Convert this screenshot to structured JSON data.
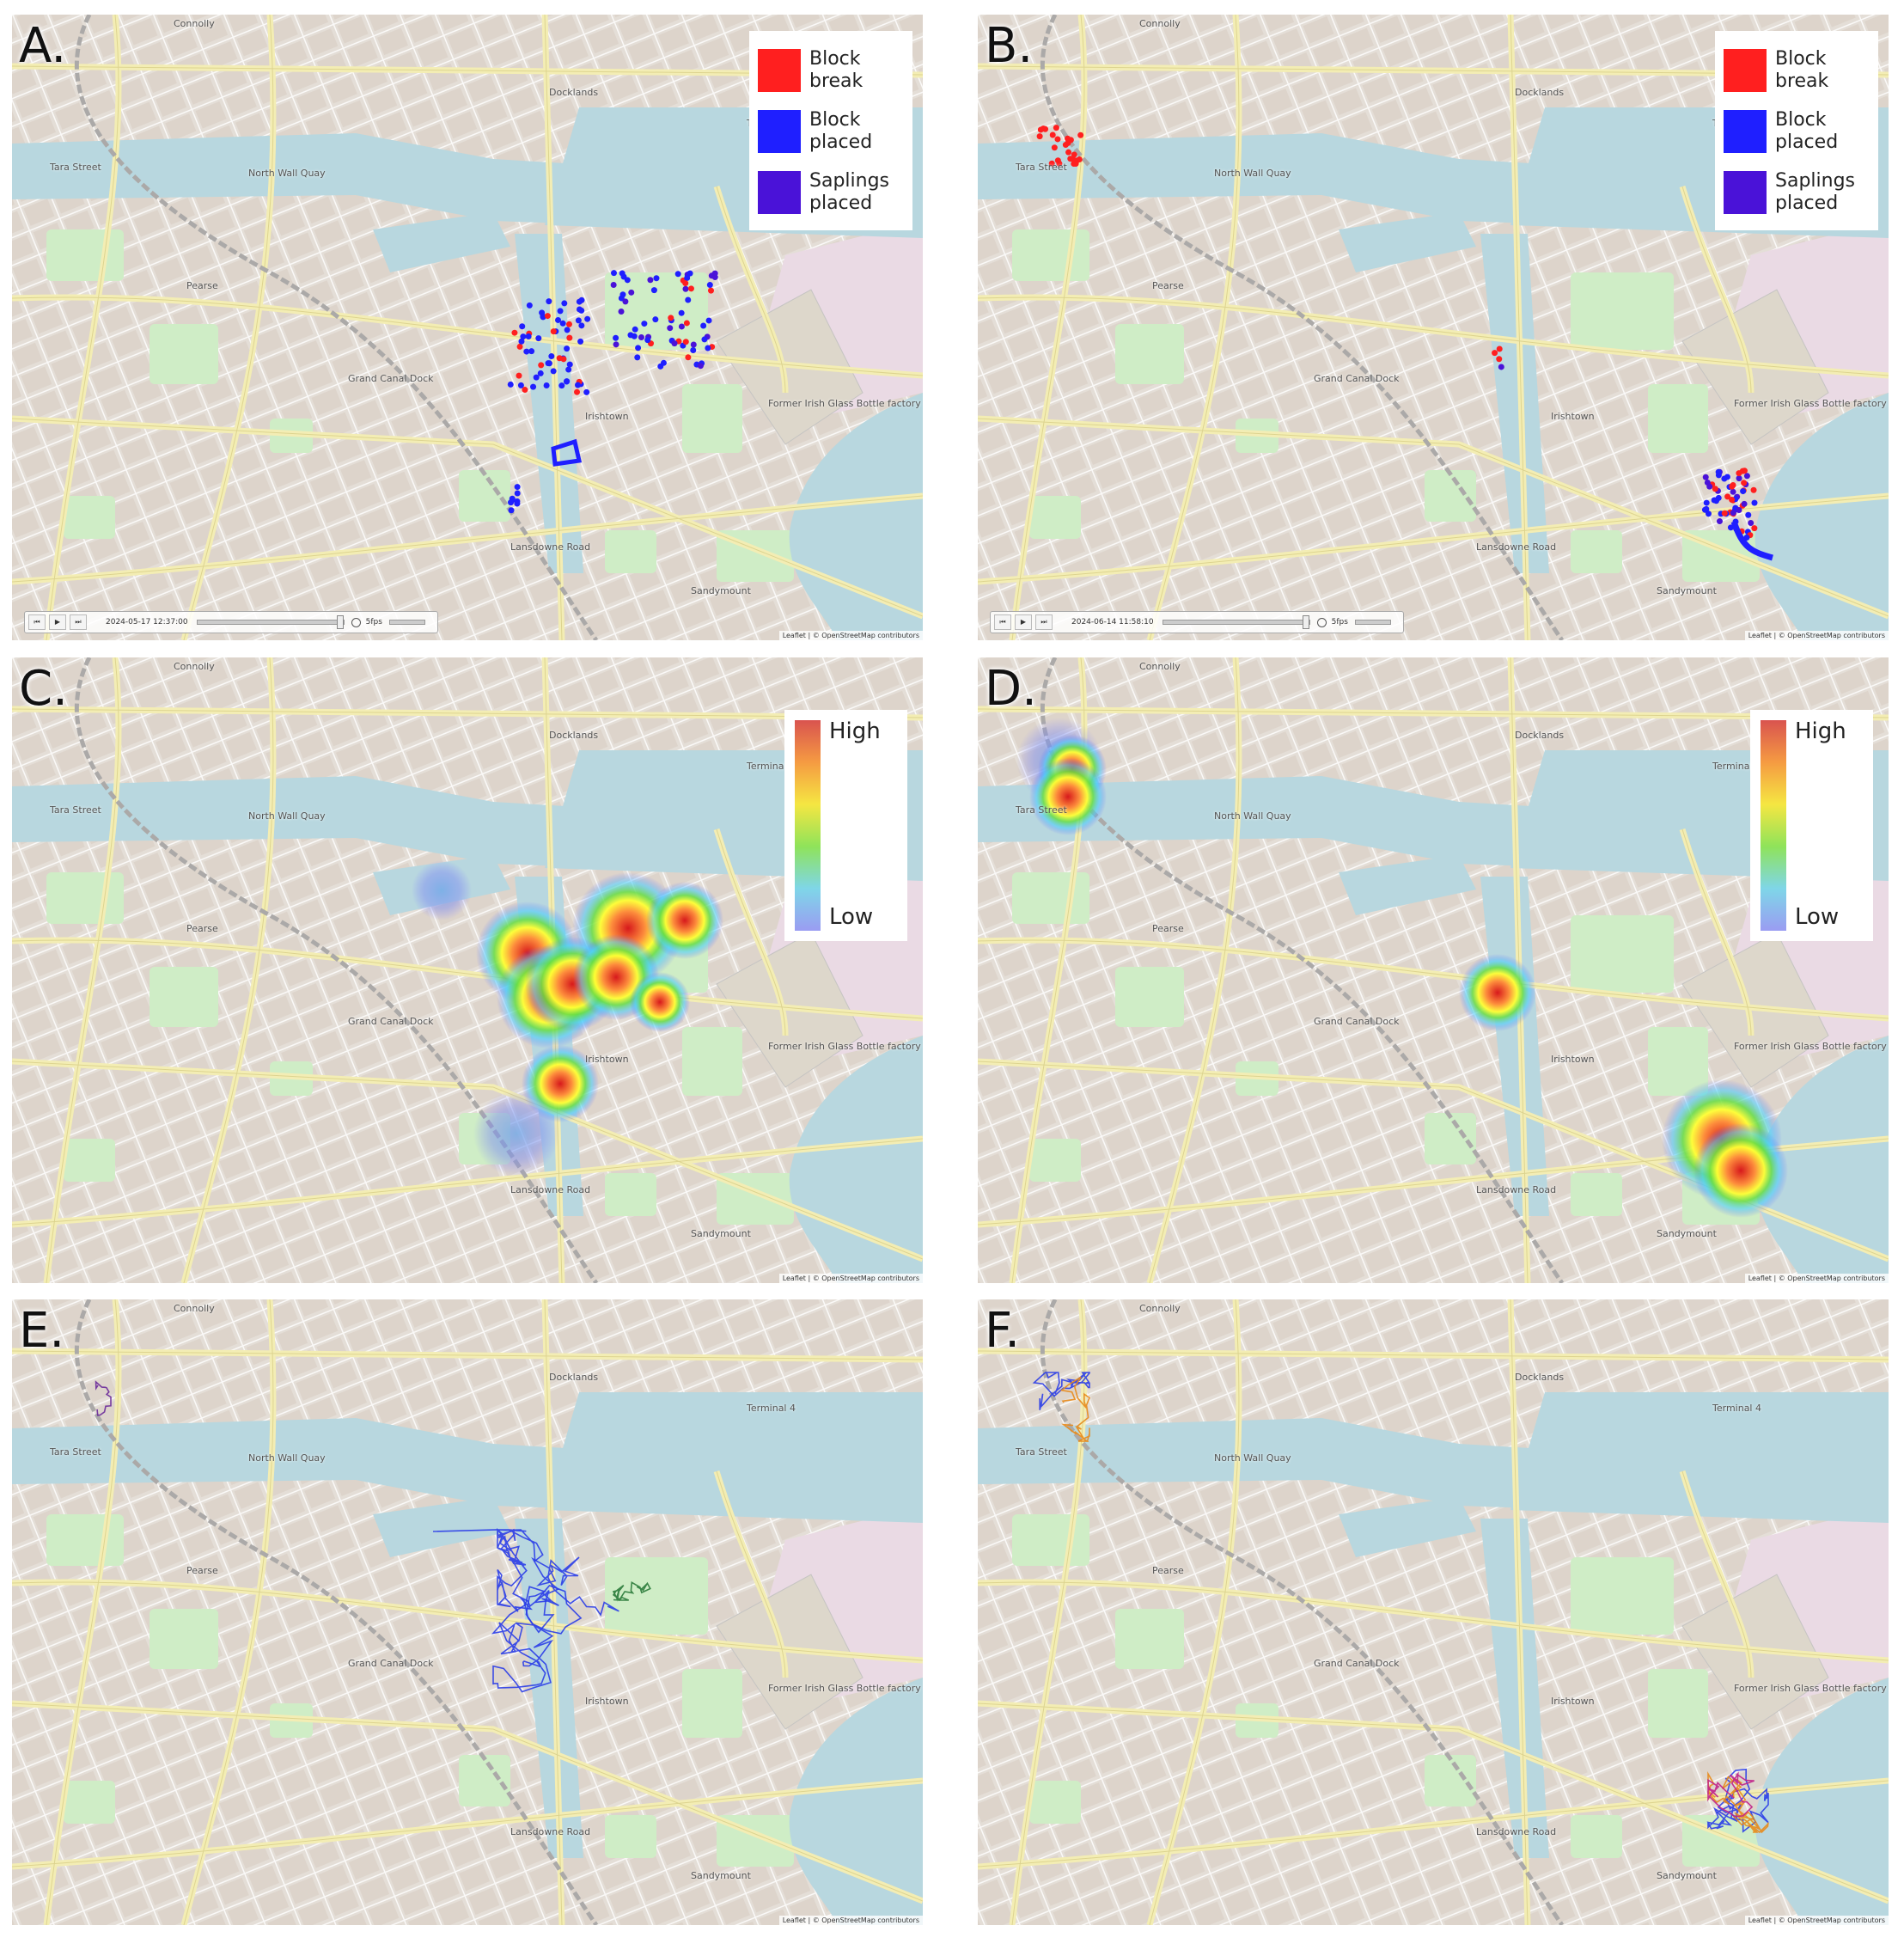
{
  "panels": [
    {
      "label": "A.",
      "legend": [
        {
          "name": "Block break",
          "color": "#ff1f1f"
        },
        {
          "name": "Block placed",
          "color": "#1f1fff"
        },
        {
          "name": "Saplings placed",
          "color": "#4a12d8"
        }
      ],
      "timeline": {
        "timestamp": "2024-05-17 12:37:00",
        "speed": "5fps"
      },
      "attribution": "Leaflet | © OpenStreetMap contributors"
    },
    {
      "label": "B.",
      "legend": [
        {
          "name": "Block break",
          "color": "#ff1f1f"
        },
        {
          "name": "Block placed",
          "color": "#1f1fff"
        },
        {
          "name": "Saplings placed",
          "color": "#4a12d8"
        }
      ],
      "timeline": {
        "timestamp": "2024-06-14 11:58:10",
        "speed": "5fps"
      },
      "attribution": "Leaflet | © OpenStreetMap contributors"
    },
    {
      "label": "C.",
      "heat_legend": {
        "high": "High",
        "low": "Low"
      },
      "attribution": "Leaflet | © OpenStreetMap contributors"
    },
    {
      "label": "D.",
      "heat_legend": {
        "high": "High",
        "low": "Low"
      },
      "attribution": "Leaflet | © OpenStreetMap contributors"
    },
    {
      "label": "E.",
      "attribution": "Leaflet | © OpenStreetMap contributors"
    },
    {
      "label": "F.",
      "attribution": "Leaflet | © OpenStreetMap contributors"
    }
  ],
  "map_labels": [
    "Connolly",
    "Docklands",
    "Terminal 4",
    "North Wall Quay",
    "Tara Street",
    "Pearse",
    "Grand Canal Dock",
    "Irishtown",
    "Former Irish Glass Bottle factory site",
    "Lansdowne Road",
    "Sandymount"
  ]
}
